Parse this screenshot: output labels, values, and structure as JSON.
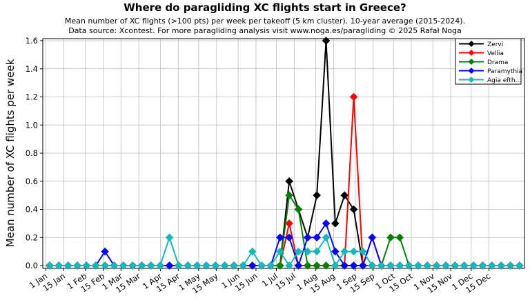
{
  "header": {
    "title": "Where do paragliding XC flights start in Greece?",
    "subtitle1": "Mean number of XC flights (>100 pts) per week per takeoff (5 km cluster). 10-year average (2015-2024).",
    "subtitle2": "Data source: Xcontest. For more paragliding analysis visit www.noga.es/paragliding © 2025 Rafał Noga"
  },
  "chart_data": {
    "type": "line",
    "title": "Where do paragliding XC flights start in Greece?",
    "xlabel": "",
    "ylabel": "Mean number of XC flights per week",
    "ylim": [
      0,
      1.6
    ],
    "grid": true,
    "legend_position": "top-right",
    "marker": "diamond",
    "grid_color": "#c9c9c9",
    "axis_color": "#000000",
    "ytick_labels": [
      "0.0",
      "0.2",
      "0.4",
      "0.6",
      "0.8",
      "1.0",
      "1.2",
      "1.4",
      "1.6"
    ],
    "ytick_values": [
      0,
      0.2,
      0.4,
      0.6,
      0.8,
      1.0,
      1.2,
      1.4,
      1.6
    ],
    "xtick_labels": [
      "1 Jan",
      "15 Jan",
      "1 Feb",
      "15 Feb",
      "1 Mar",
      "15 Mar",
      "1 Apr",
      "15 Apr",
      "1 May",
      "15 May",
      "1 Jun",
      "15 Jun",
      "1 Jul",
      "15 Jul",
      "1 Aug",
      "15 Aug",
      "1 Sep",
      "15 Sep",
      "1 Oct",
      "15 Oct",
      "1 Nov",
      "15 Nov",
      "1 Dec",
      "15 Dec"
    ],
    "xtick_days": [
      0,
      14,
      31,
      45,
      59,
      73,
      90,
      104,
      120,
      134,
      151,
      165,
      181,
      195,
      212,
      226,
      243,
      257,
      273,
      287,
      304,
      318,
      334,
      348
    ],
    "week_start_dates": [
      "1 Jan",
      "8 Jan",
      "15 Jan",
      "22 Jan",
      "29 Jan",
      "5 Feb",
      "12 Feb",
      "19 Feb",
      "26 Feb",
      "5 Mar",
      "12 Mar",
      "19 Mar",
      "26 Mar",
      "2 Apr",
      "9 Apr",
      "16 Apr",
      "23 Apr",
      "30 Apr",
      "7 May",
      "14 May",
      "21 May",
      "28 May",
      "4 Jun",
      "11 Jun",
      "18 Jun",
      "25 Jun",
      "2 Jul",
      "9 Jul",
      "16 Jul",
      "23 Jul",
      "30 Jul",
      "6 Aug",
      "13 Aug",
      "20 Aug",
      "27 Aug",
      "3 Sep",
      "10 Sep",
      "17 Sep",
      "24 Sep",
      "1 Oct",
      "8 Oct",
      "15 Oct",
      "22 Oct",
      "29 Oct",
      "5 Nov",
      "12 Nov",
      "19 Nov",
      "26 Nov",
      "3 Dec",
      "10 Dec",
      "17 Dec",
      "24 Dec"
    ],
    "series": [
      {
        "name": "Zervi",
        "color": "#000000",
        "values": [
          0,
          0,
          0,
          0,
          0,
          0,
          0,
          0,
          0,
          0,
          0,
          0,
          0,
          0,
          0,
          0,
          0,
          0,
          0,
          0,
          0,
          0,
          0,
          0,
          0,
          0,
          0.6,
          0.4,
          0.2,
          0.5,
          1.6,
          0.3,
          0.5,
          0.4,
          0,
          0,
          0,
          0,
          0,
          0,
          0,
          0,
          0,
          0,
          0,
          0,
          0,
          0,
          0,
          0,
          0,
          0
        ]
      },
      {
        "name": "Vellia",
        "color": "#ff0000",
        "values": [
          0,
          0,
          0,
          0,
          0,
          0,
          0,
          0,
          0,
          0,
          0,
          0,
          0,
          0,
          0,
          0,
          0,
          0,
          0,
          0,
          0,
          0,
          0,
          0,
          0,
          0,
          0.3,
          0,
          0,
          0,
          0,
          0,
          0,
          1.2,
          0,
          0.2,
          0,
          0,
          0,
          0,
          0,
          0,
          0,
          0,
          0,
          0,
          0,
          0,
          0,
          0,
          0,
          0
        ]
      },
      {
        "name": "Drama",
        "color": "#008000",
        "values": [
          0,
          0,
          0,
          0,
          0,
          0,
          0,
          0,
          0,
          0,
          0,
          0,
          0,
          0,
          0,
          0,
          0,
          0,
          0,
          0,
          0,
          0,
          0,
          0,
          0,
          0,
          0.5,
          0.4,
          0,
          0,
          0,
          0,
          0,
          0,
          0,
          0,
          0,
          0.2,
          0.2,
          0,
          0,
          0,
          0,
          0,
          0,
          0,
          0,
          0,
          0,
          0,
          0,
          0
        ]
      },
      {
        "name": "Paramythia",
        "color": "#0000ff",
        "values": [
          0,
          0,
          0,
          0,
          0,
          0,
          0.1,
          0,
          0,
          0,
          0,
          0,
          0,
          0,
          0,
          0,
          0,
          0,
          0,
          0,
          0,
          0,
          0,
          0,
          0,
          0.2,
          0.2,
          0,
          0.2,
          0.2,
          0.3,
          0.1,
          0,
          0,
          0,
          0.2,
          0,
          0,
          0,
          0,
          0,
          0,
          0,
          0,
          0,
          0,
          0,
          0,
          0,
          0,
          0,
          0
        ]
      },
      {
        "name": "Agia efth...",
        "color": "#15b8b8",
        "values": [
          0,
          0,
          0,
          0,
          0,
          0,
          0,
          0,
          0,
          0,
          0,
          0,
          0,
          0.2,
          0,
          0,
          0,
          0,
          0,
          0,
          0,
          0,
          0.1,
          0,
          0,
          0.1,
          0,
          0.1,
          0.1,
          0.1,
          0.2,
          0,
          0.1,
          0.1,
          0.1,
          0,
          0,
          0,
          0,
          0,
          0,
          0,
          0,
          0,
          0,
          0,
          0,
          0,
          0,
          0,
          0,
          0
        ]
      }
    ]
  }
}
